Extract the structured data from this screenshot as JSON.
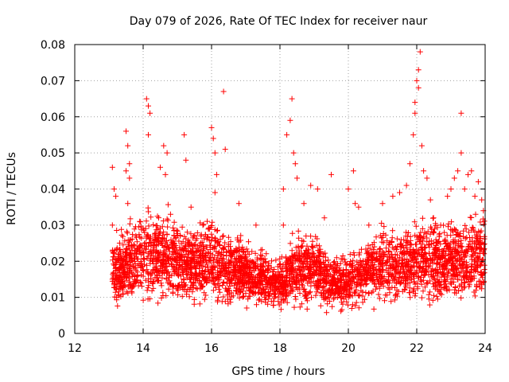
{
  "chart_data": {
    "type": "scatter",
    "title": "Day 079 of 2026, Rate Of TEC Index for receiver naur",
    "xlabel": "GPS time / hours",
    "ylabel": "ROTI / TECUs",
    "xlim": [
      12,
      24
    ],
    "ylim": [
      0,
      0.08
    ],
    "xticks": [
      12,
      14,
      16,
      18,
      20,
      22,
      24
    ],
    "xtick_labels": [
      "12",
      "14",
      "16",
      "18",
      "20",
      "22",
      "24"
    ],
    "yticks": [
      0,
      0.01,
      0.02,
      0.03,
      0.04,
      0.05,
      0.06,
      0.07,
      0.08
    ],
    "ytick_labels": [
      "0",
      "0.01",
      "0.02",
      "0.03",
      "0.04",
      "0.05",
      "0.06",
      "0.07",
      "0.08"
    ],
    "grid": true,
    "marker": "+",
    "color": "#ff0000",
    "series": [
      {
        "name": "ROTI",
        "points": [
          [
            13.1,
            0.046
          ],
          [
            13.15,
            0.04
          ],
          [
            13.2,
            0.038
          ],
          [
            13.1,
            0.03
          ],
          [
            13.5,
            0.056
          ],
          [
            13.55,
            0.052
          ],
          [
            13.6,
            0.047
          ],
          [
            13.5,
            0.045
          ],
          [
            13.6,
            0.043
          ],
          [
            13.55,
            0.036
          ],
          [
            13.9,
            0.031
          ],
          [
            14.1,
            0.065
          ],
          [
            14.15,
            0.063
          ],
          [
            14.2,
            0.061
          ],
          [
            14.15,
            0.055
          ],
          [
            14.5,
            0.046
          ],
          [
            14.6,
            0.052
          ],
          [
            14.7,
            0.05
          ],
          [
            14.65,
            0.044
          ],
          [
            14.8,
            0.033
          ],
          [
            15.2,
            0.055
          ],
          [
            15.25,
            0.048
          ],
          [
            15.4,
            0.035
          ],
          [
            16.0,
            0.057
          ],
          [
            16.05,
            0.054
          ],
          [
            16.1,
            0.05
          ],
          [
            16.15,
            0.044
          ],
          [
            16.35,
            0.067
          ],
          [
            16.4,
            0.051
          ],
          [
            16.1,
            0.039
          ],
          [
            16.8,
            0.036
          ],
          [
            17.3,
            0.03
          ],
          [
            18.2,
            0.055
          ],
          [
            18.3,
            0.059
          ],
          [
            18.35,
            0.065
          ],
          [
            18.4,
            0.05
          ],
          [
            18.45,
            0.047
          ],
          [
            18.5,
            0.043
          ],
          [
            18.1,
            0.04
          ],
          [
            18.1,
            0.03
          ],
          [
            18.7,
            0.036
          ],
          [
            18.9,
            0.041
          ],
          [
            19.1,
            0.04
          ],
          [
            19.3,
            0.032
          ],
          [
            19.5,
            0.044
          ],
          [
            20.0,
            0.04
          ],
          [
            20.15,
            0.045
          ],
          [
            20.2,
            0.036
          ],
          [
            20.3,
            0.035
          ],
          [
            20.6,
            0.03
          ],
          [
            21.0,
            0.036
          ],
          [
            21.3,
            0.038
          ],
          [
            21.5,
            0.039
          ],
          [
            21.7,
            0.041
          ],
          [
            21.8,
            0.047
          ],
          [
            21.9,
            0.055
          ],
          [
            21.95,
            0.061
          ],
          [
            22.0,
            0.07
          ],
          [
            22.05,
            0.073
          ],
          [
            22.1,
            0.078
          ],
          [
            22.05,
            0.068
          ],
          [
            21.95,
            0.064
          ],
          [
            22.15,
            0.052
          ],
          [
            22.2,
            0.045
          ],
          [
            22.3,
            0.043
          ],
          [
            22.4,
            0.037
          ],
          [
            22.7,
            0.03
          ],
          [
            22.9,
            0.038
          ],
          [
            23.0,
            0.04
          ],
          [
            23.1,
            0.043
          ],
          [
            23.2,
            0.045
          ],
          [
            23.3,
            0.061
          ],
          [
            23.3,
            0.05
          ],
          [
            23.4,
            0.04
          ],
          [
            23.5,
            0.044
          ],
          [
            23.6,
            0.045
          ],
          [
            23.7,
            0.038
          ],
          [
            23.8,
            0.042
          ],
          [
            23.9,
            0.037
          ],
          [
            23.95,
            0.034
          ]
        ]
      }
    ],
    "baseline_band": {
      "x": [
        13.1,
        13.5,
        14.0,
        14.5,
        15.0,
        15.5,
        16.0,
        16.5,
        17.0,
        17.5,
        18.0,
        18.5,
        19.0,
        19.5,
        20.0,
        20.5,
        21.0,
        21.5,
        22.0,
        22.5,
        23.0,
        23.5,
        24.0
      ],
      "low": [
        0.006,
        0.005,
        0.005,
        0.005,
        0.005,
        0.005,
        0.005,
        0.005,
        0.005,
        0.005,
        0.005,
        0.005,
        0.005,
        0.005,
        0.005,
        0.006,
        0.006,
        0.006,
        0.006,
        0.006,
        0.006,
        0.006,
        0.006
      ],
      "high": [
        0.026,
        0.029,
        0.033,
        0.034,
        0.03,
        0.03,
        0.031,
        0.027,
        0.025,
        0.023,
        0.02,
        0.027,
        0.027,
        0.021,
        0.021,
        0.026,
        0.029,
        0.029,
        0.031,
        0.031,
        0.029,
        0.031,
        0.033
      ],
      "density": 3500
    }
  }
}
